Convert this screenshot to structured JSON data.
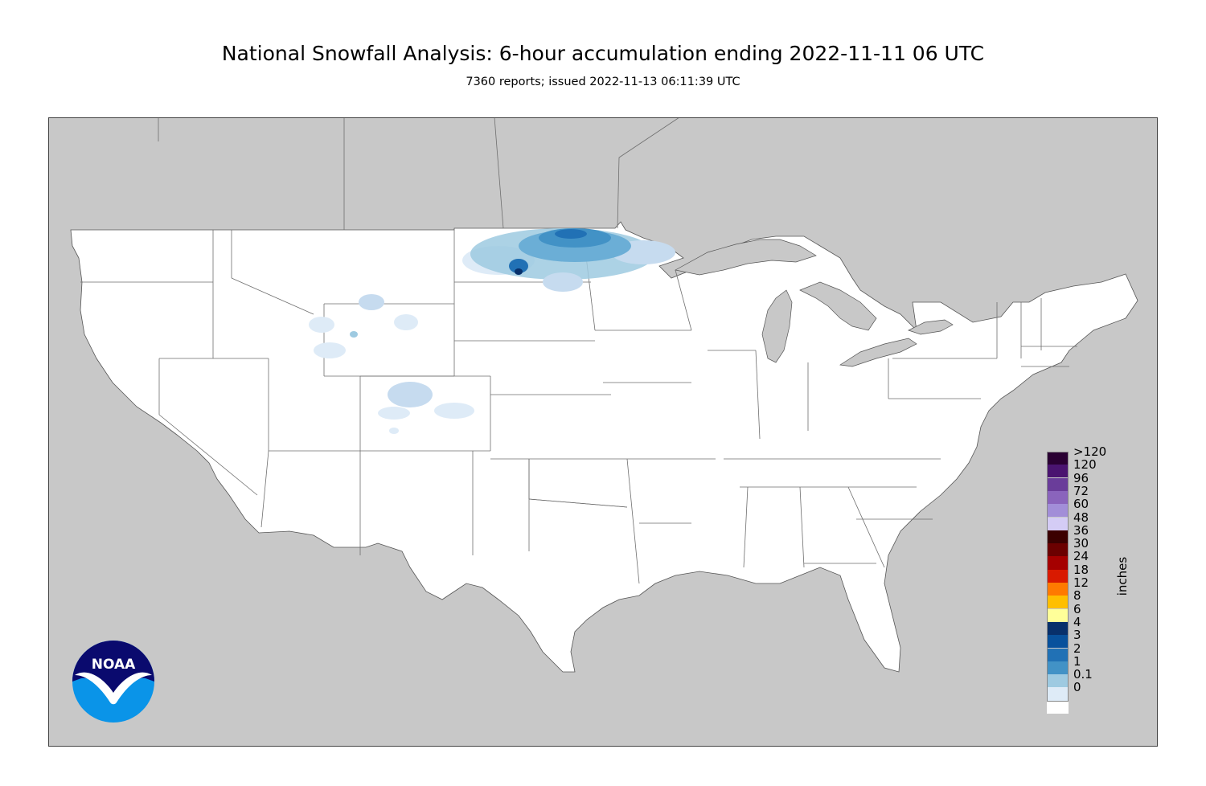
{
  "title": "National Snowfall Analysis: 6-hour accumulation ending 2022-11-11 06 UTC",
  "subtitle": "7360 reports; issued 2022-11-13 06:11:39 UTC",
  "logo_text": "NOAA",
  "legend": {
    "units": "inches",
    "items": [
      {
        "label": ">120",
        "color": "#2a0033"
      },
      {
        "label": "120",
        "color": "#4a1470"
      },
      {
        "label": "96",
        "color": "#6a3d9a"
      },
      {
        "label": "72",
        "color": "#8a64bc"
      },
      {
        "label": "60",
        "color": "#a28ed8"
      },
      {
        "label": "48",
        "color": "#d4ccf5"
      },
      {
        "label": "36",
        "color": "#3b0000"
      },
      {
        "label": "30",
        "color": "#6b0000"
      },
      {
        "label": "24",
        "color": "#a50000"
      },
      {
        "label": "18",
        "color": "#d91a00"
      },
      {
        "label": "12",
        "color": "#ff7a00"
      },
      {
        "label": "8",
        "color": "#ffbf00"
      },
      {
        "label": "6",
        "color": "#ffff99"
      },
      {
        "label": "4",
        "color": "#08306b"
      },
      {
        "label": "3",
        "color": "#08519c"
      },
      {
        "label": "2",
        "color": "#2171b5"
      },
      {
        "label": "1",
        "color": "#4292c6"
      },
      {
        "label": "0.1",
        "color": "#9ecae1"
      },
      {
        "label": "0",
        "color": "#deebf7"
      }
    ],
    "zero_fill": "#ffffff"
  },
  "map": {
    "land_color": "#ffffff",
    "background_color": "#c8c8c8",
    "border_color": "#666666"
  }
}
